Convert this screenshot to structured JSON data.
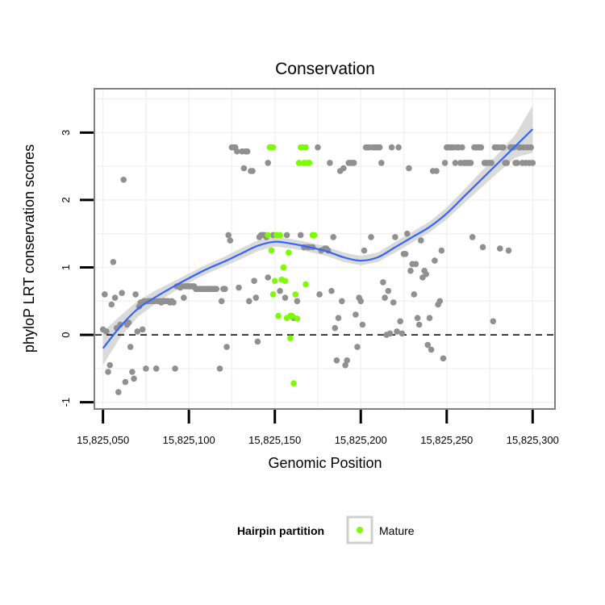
{
  "chart_data": {
    "type": "scatter",
    "title": "Conservation",
    "xlabel": "Genomic Position",
    "ylabel": "phyloP LRT conservation scores",
    "xlim": [
      15825045,
      15825313
    ],
    "ylim": [
      -1.1,
      3.65
    ],
    "x_ticks": [
      15825050,
      15825100,
      15825150,
      15825200,
      15825250,
      15825300
    ],
    "x_tick_labels": [
      "15,825,050",
      "15,825,100",
      "15,825,150",
      "15,825,200",
      "15,825,250",
      "15,825,300"
    ],
    "y_ticks": [
      -1,
      0,
      1,
      2,
      3
    ],
    "y_tick_labels": [
      "-1",
      "0",
      "1",
      "2",
      "3"
    ],
    "reference_line": {
      "y": 0,
      "style": "dashed"
    },
    "grid": true,
    "legend": {
      "title": "Hairpin partition",
      "position": "bottom",
      "entries": [
        {
          "label": "Mature",
          "color": "#7cfc00"
        }
      ]
    },
    "colors": {
      "hairpin": "#909090",
      "mature": "#7cfc00",
      "smooth": "#3366ff",
      "band": "#d3d3d3",
      "panel_border": "#808080",
      "grid": "#f2f2f2"
    },
    "series": [
      {
        "color": "#909090",
        "points": [
          [
            15825050,
            0.08
          ],
          [
            15825051,
            0.6
          ],
          [
            15825052,
            0.05
          ],
          [
            15825053,
            -0.55
          ],
          [
            15825054,
            -0.45
          ],
          [
            15825055,
            0.45
          ],
          [
            15825056,
            1.08
          ],
          [
            15825057,
            0.55
          ],
          [
            15825058,
            0.1
          ],
          [
            15825059,
            -0.85
          ],
          [
            15825060,
            0.15
          ],
          [
            15825061,
            0.62
          ],
          [
            15825062,
            2.3
          ],
          [
            15825063,
            -0.7
          ],
          [
            15825064,
            0.15
          ],
          [
            15825065,
            0.18
          ],
          [
            15825066,
            -0.18
          ],
          [
            15825067,
            -0.55
          ],
          [
            15825068,
            -0.65
          ],
          [
            15825069,
            0.6
          ],
          [
            15825070,
            0.05
          ],
          [
            15825071,
            0.42
          ],
          [
            15825072,
            0.48
          ],
          [
            15825073,
            0.08
          ],
          [
            15825074,
            0.5
          ],
          [
            15825075,
            -0.5
          ],
          [
            15825076,
            0.5
          ],
          [
            15825077,
            0.5
          ],
          [
            15825078,
            0.5
          ],
          [
            15825079,
            0.5
          ],
          [
            15825080,
            0.5
          ],
          [
            15825081,
            -0.5
          ],
          [
            15825082,
            0.5
          ],
          [
            15825083,
            0.5
          ],
          [
            15825084,
            0.48
          ],
          [
            15825085,
            0.5
          ],
          [
            15825086,
            0.5
          ],
          [
            15825087,
            0.5
          ],
          [
            15825088,
            0.5
          ],
          [
            15825089,
            0.48
          ],
          [
            15825090,
            0.5
          ],
          [
            15825091,
            0.48
          ],
          [
            15825092,
            -0.5
          ],
          [
            15825093,
            0.72
          ],
          [
            15825094,
            0.72
          ],
          [
            15825095,
            0.7
          ],
          [
            15825096,
            0.72
          ],
          [
            15825097,
            0.55
          ],
          [
            15825098,
            0.72
          ],
          [
            15825099,
            0.72
          ],
          [
            15825100,
            0.72
          ],
          [
            15825101,
            0.72
          ],
          [
            15825102,
            0.72
          ],
          [
            15825103,
            0.72
          ],
          [
            15825104,
            0.68
          ],
          [
            15825105,
            0.68
          ],
          [
            15825106,
            0.68
          ],
          [
            15825107,
            0.68
          ],
          [
            15825108,
            0.68
          ],
          [
            15825109,
            0.68
          ],
          [
            15825110,
            0.68
          ],
          [
            15825111,
            0.68
          ],
          [
            15825112,
            0.68
          ],
          [
            15825113,
            0.68
          ],
          [
            15825114,
            0.68
          ],
          [
            15825115,
            0.68
          ],
          [
            15825116,
            0.68
          ],
          [
            15825118,
            -0.5
          ],
          [
            15825119,
            0.5
          ],
          [
            15825120,
            0.68
          ],
          [
            15825121,
            0.68
          ],
          [
            15825122,
            -0.18
          ],
          [
            15825123,
            1.48
          ],
          [
            15825124,
            1.4
          ],
          [
            15825125,
            2.78
          ],
          [
            15825126,
            2.78
          ],
          [
            15825127,
            2.78
          ],
          [
            15825128,
            2.72
          ],
          [
            15825129,
            0.7
          ],
          [
            15825131,
            2.72
          ],
          [
            15825132,
            2.47
          ],
          [
            15825133,
            2.72
          ],
          [
            15825134,
            2.72
          ],
          [
            15825135,
            0.5
          ],
          [
            15825136,
            2.43
          ],
          [
            15825137,
            2.43
          ],
          [
            15825138,
            0.8
          ],
          [
            15825139,
            0.55
          ],
          [
            15825140,
            -0.1
          ],
          [
            15825141,
            1.45
          ],
          [
            15825142,
            1.48
          ],
          [
            15825143,
            1.48
          ],
          [
            15825144,
            1.48
          ],
          [
            15825145,
            1.45
          ],
          [
            15825146,
            2.55
          ],
          [
            15825146,
            0.85
          ],
          [
            15825149,
            1.48
          ],
          [
            15825153,
            0.65
          ],
          [
            15825156,
            0.55
          ],
          [
            15825157,
            1.48
          ],
          [
            15825161,
            0.25
          ],
          [
            15825163,
            0.5
          ],
          [
            15825165,
            1.48
          ],
          [
            15825167,
            1.3
          ],
          [
            15825169,
            1.3
          ],
          [
            15825170,
            1.3
          ],
          [
            15825172,
            1.3
          ],
          [
            15825175,
            2.78
          ],
          [
            15825176,
            0.6
          ],
          [
            15825177,
            1.25
          ],
          [
            15825179,
            1.28
          ],
          [
            15825180,
            1.28
          ],
          [
            15825181,
            1.25
          ],
          [
            15825182,
            2.55
          ],
          [
            15825183,
            0.65
          ],
          [
            15825184,
            1.45
          ],
          [
            15825185,
            0.1
          ],
          [
            15825186,
            -0.38
          ],
          [
            15825187,
            0.25
          ],
          [
            15825188,
            2.43
          ],
          [
            15825189,
            0.5
          ],
          [
            15825190,
            2.47
          ],
          [
            15825191,
            -0.45
          ],
          [
            15825192,
            -0.38
          ],
          [
            15825193,
            2.55
          ],
          [
            15825194,
            2.55
          ],
          [
            15825195,
            2.55
          ],
          [
            15825196,
            2.55
          ],
          [
            15825197,
            0.3
          ],
          [
            15825198,
            -0.18
          ],
          [
            15825199,
            0.55
          ],
          [
            15825200,
            0.5
          ],
          [
            15825201,
            0.15
          ],
          [
            15825202,
            1.25
          ],
          [
            15825203,
            2.78
          ],
          [
            15825204,
            2.78
          ],
          [
            15825205,
            2.78
          ],
          [
            15825206,
            1.45
          ],
          [
            15825207,
            2.78
          ],
          [
            15825208,
            2.78
          ],
          [
            15825209,
            2.78
          ],
          [
            15825210,
            2.78
          ],
          [
            15825211,
            2.78
          ],
          [
            15825212,
            2.55
          ],
          [
            15825213,
            0.78
          ],
          [
            15825214,
            0.55
          ],
          [
            15825215,
            0.0
          ],
          [
            15825216,
            0.65
          ],
          [
            15825217,
            0.02
          ],
          [
            15825218,
            2.78
          ],
          [
            15825219,
            0.48
          ],
          [
            15825220,
            1.45
          ],
          [
            15825221,
            0.05
          ],
          [
            15825222,
            2.78
          ],
          [
            15825223,
            0.2
          ],
          [
            15825224,
            0.02
          ],
          [
            15825225,
            1.2
          ],
          [
            15825226,
            1.2
          ],
          [
            15825227,
            1.5
          ],
          [
            15825228,
            2.47
          ],
          [
            15825229,
            0.95
          ],
          [
            15825230,
            1.05
          ],
          [
            15825231,
            0.6
          ],
          [
            15825232,
            1.05
          ],
          [
            15825233,
            0.25
          ],
          [
            15825234,
            0.15
          ],
          [
            15825235,
            1.4
          ],
          [
            15825236,
            0.85
          ],
          [
            15825237,
            0.95
          ],
          [
            15825238,
            0.9
          ],
          [
            15825239,
            -0.15
          ],
          [
            15825240,
            0.25
          ],
          [
            15825241,
            -0.22
          ],
          [
            15825242,
            2.43
          ],
          [
            15825243,
            1.1
          ],
          [
            15825244,
            2.43
          ],
          [
            15825245,
            0.45
          ],
          [
            15825246,
            0.5
          ],
          [
            15825247,
            1.25
          ],
          [
            15825248,
            -0.35
          ],
          [
            15825249,
            2.55
          ],
          [
            15825250,
            2.78
          ],
          [
            15825251,
            2.78
          ],
          [
            15825252,
            2.78
          ],
          [
            15825253,
            2.78
          ],
          [
            15825254,
            2.78
          ],
          [
            15825255,
            2.55
          ],
          [
            15825256,
            2.78
          ],
          [
            15825257,
            2.78
          ],
          [
            15825258,
            2.55
          ],
          [
            15825259,
            2.78
          ],
          [
            15825260,
            2.55
          ],
          [
            15825261,
            2.55
          ],
          [
            15825262,
            2.55
          ],
          [
            15825263,
            2.55
          ],
          [
            15825264,
            2.55
          ],
          [
            15825265,
            1.45
          ],
          [
            15825266,
            2.78
          ],
          [
            15825267,
            2.78
          ],
          [
            15825268,
            2.78
          ],
          [
            15825269,
            2.78
          ],
          [
            15825270,
            2.78
          ],
          [
            15825271,
            1.3
          ],
          [
            15825272,
            2.55
          ],
          [
            15825273,
            2.55
          ],
          [
            15825274,
            2.55
          ],
          [
            15825275,
            2.55
          ],
          [
            15825276,
            2.55
          ],
          [
            15825277,
            0.2
          ],
          [
            15825278,
            2.78
          ],
          [
            15825279,
            2.78
          ],
          [
            15825280,
            2.78
          ],
          [
            15825281,
            1.28
          ],
          [
            15825282,
            2.78
          ],
          [
            15825283,
            2.78
          ],
          [
            15825284,
            2.55
          ],
          [
            15825285,
            2.55
          ],
          [
            15825286,
            1.25
          ],
          [
            15825287,
            2.78
          ],
          [
            15825288,
            2.78
          ],
          [
            15825289,
            2.78
          ],
          [
            15825290,
            2.55
          ],
          [
            15825291,
            2.55
          ],
          [
            15825292,
            2.78
          ],
          [
            15825293,
            2.78
          ],
          [
            15825294,
            2.55
          ],
          [
            15825295,
            2.78
          ],
          [
            15825296,
            2.55
          ],
          [
            15825297,
            2.78
          ],
          [
            15825298,
            2.55
          ],
          [
            15825299,
            2.78
          ],
          [
            15825300,
            2.55
          ]
        ]
      },
      {
        "name": "Mature",
        "color": "#7cfc00",
        "points": [
          [
            15825146,
            1.48
          ],
          [
            15825147,
            2.78
          ],
          [
            15825148,
            2.78
          ],
          [
            15825149,
            2.78
          ],
          [
            15825148,
            1.25
          ],
          [
            15825149,
            0.6
          ],
          [
            15825150,
            0.8
          ],
          [
            15825151,
            1.48
          ],
          [
            15825152,
            0.28
          ],
          [
            15825153,
            1.48
          ],
          [
            15825154,
            0.82
          ],
          [
            15825155,
            1.0
          ],
          [
            15825156,
            0.8
          ],
          [
            15825157,
            0.25
          ],
          [
            15825158,
            1.22
          ],
          [
            15825159,
            0.28
          ],
          [
            15825159,
            -0.05
          ],
          [
            15825160,
            0.28
          ],
          [
            15825161,
            -0.72
          ],
          [
            15825162,
            0.6
          ],
          [
            15825163,
            0.24
          ],
          [
            15825164,
            2.55
          ],
          [
            15825165,
            2.78
          ],
          [
            15825166,
            2.78
          ],
          [
            15825167,
            2.55
          ],
          [
            15825168,
            2.78
          ],
          [
            15825168,
            0.75
          ],
          [
            15825169,
            2.55
          ],
          [
            15825170,
            2.55
          ],
          [
            15825172,
            1.48
          ],
          [
            15825173,
            1.48
          ]
        ]
      }
    ],
    "smooth": {
      "x": [
        15825050,
        15825060,
        15825070,
        15825080,
        15825090,
        15825100,
        15825110,
        15825120,
        15825130,
        15825140,
        15825150,
        15825160,
        15825170,
        15825180,
        15825190,
        15825200,
        15825210,
        15825220,
        15825230,
        15825240,
        15825250,
        15825260,
        15825270,
        15825280,
        15825290,
        15825300
      ],
      "y": [
        -0.2,
        0.12,
        0.38,
        0.55,
        0.7,
        0.84,
        0.97,
        1.08,
        1.2,
        1.32,
        1.38,
        1.35,
        1.3,
        1.24,
        1.15,
        1.1,
        1.15,
        1.3,
        1.45,
        1.6,
        1.8,
        2.05,
        2.3,
        2.55,
        2.8,
        3.05
      ],
      "lower": [
        -0.45,
        -0.04,
        0.26,
        0.45,
        0.62,
        0.77,
        0.9,
        1.01,
        1.12,
        1.24,
        1.31,
        1.28,
        1.23,
        1.17,
        1.08,
        1.03,
        1.08,
        1.22,
        1.37,
        1.52,
        1.71,
        1.95,
        2.18,
        2.41,
        2.63,
        2.7
      ],
      "upper": [
        0.05,
        0.28,
        0.5,
        0.65,
        0.78,
        0.91,
        1.04,
        1.15,
        1.28,
        1.4,
        1.45,
        1.42,
        1.37,
        1.31,
        1.22,
        1.17,
        1.22,
        1.38,
        1.53,
        1.68,
        1.89,
        2.15,
        2.42,
        2.69,
        2.97,
        3.4
      ]
    }
  }
}
